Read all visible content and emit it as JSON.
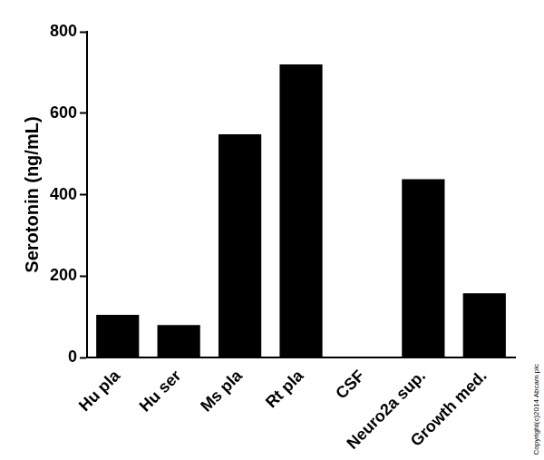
{
  "chart_data": {
    "type": "bar",
    "y_label": "Serotonin (ng/mL)",
    "categories": [
      "Hu pla",
      "Hu ser",
      "Ms pla",
      "Rt pla",
      "CSF",
      "Neuro2a sup.",
      "Growth med."
    ],
    "values": [
      105,
      80,
      548,
      720,
      0,
      438,
      158
    ],
    "color": "#000000",
    "ylim": [
      0,
      800
    ],
    "yticks": [
      0,
      200,
      400,
      600,
      800
    ],
    "grid": false,
    "annotation": "Copyright(c)2014 Abcam plc"
  }
}
